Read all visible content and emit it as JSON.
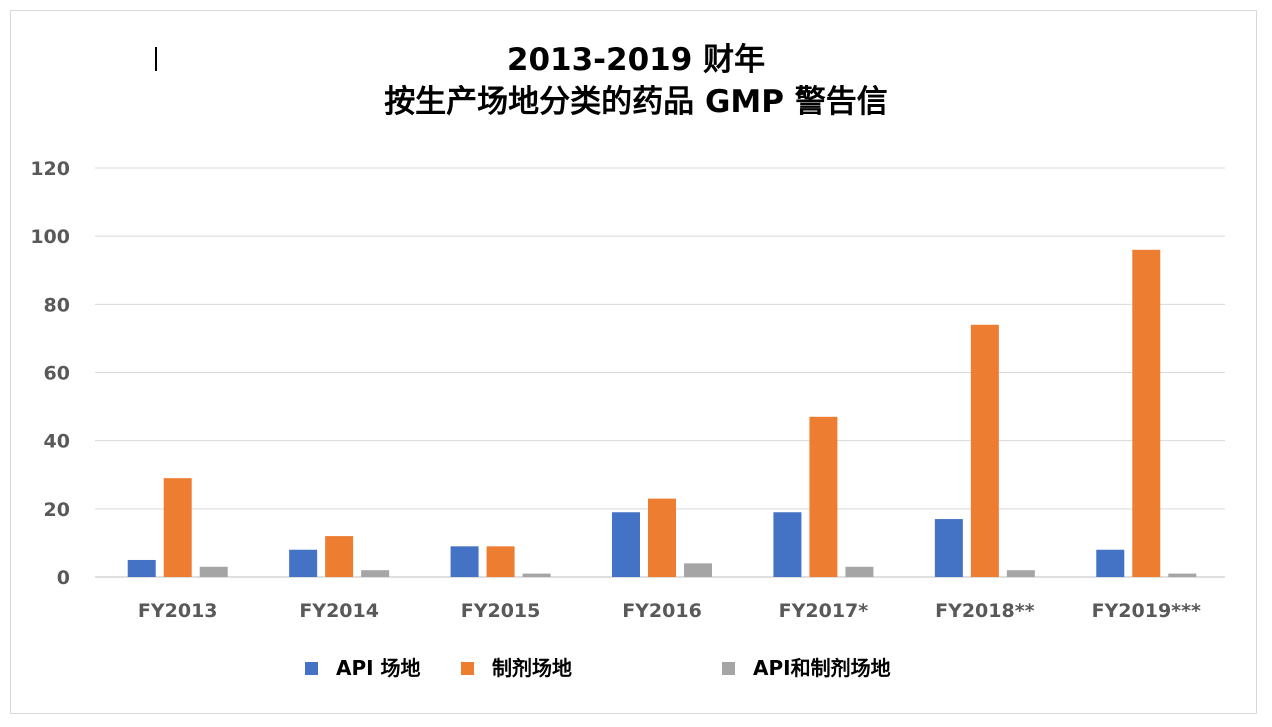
{
  "chart_data": {
    "type": "bar",
    "title_line1": "2013-2019 财年",
    "title_line2": "按生产场地分类的药品 GMP 警告信",
    "categories": [
      "FY2013",
      "FY2014",
      "FY2015",
      "FY2016",
      "FY2017*",
      "FY2018**",
      "FY2019***"
    ],
    "series": [
      {
        "name": "API 场地",
        "color": "#4472c4",
        "values": [
          5,
          8,
          9,
          19,
          19,
          17,
          8
        ]
      },
      {
        "name": "制剂场地",
        "color": "#ed7d31",
        "values": [
          29,
          12,
          9,
          23,
          47,
          74,
          96
        ]
      },
      {
        "name": "API和制剂场地",
        "color": "#a5a5a5",
        "values": [
          3,
          2,
          1,
          4,
          3,
          2,
          1
        ]
      }
    ],
    "ylim": [
      0,
      120
    ],
    "yticks": [
      "0",
      "20",
      "40",
      "60",
      "80",
      "100",
      "120"
    ],
    "grid": true,
    "legend": "bottom"
  }
}
